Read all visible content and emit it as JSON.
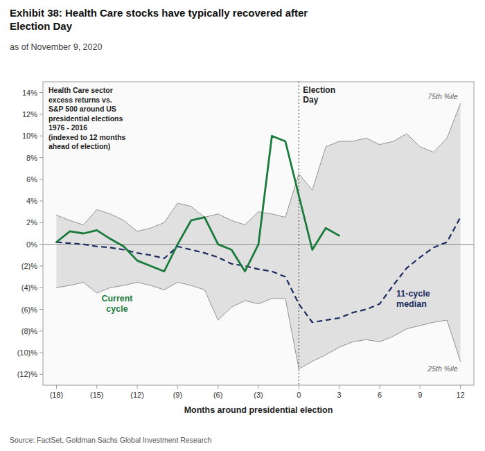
{
  "chart_data": {
    "type": "line",
    "title": "Exhibit 38: Health Care stocks have typically recovered after\nElection Day",
    "subtitle": "as of November 9, 2020",
    "source": "Source: FactSet, Goldman Sachs Global Investment Research",
    "xlabel": "Months around presidential election",
    "annotations": [
      "Health Care sector\nexcess returns vs.\nS&P 500 around US\npresidential elections\n1976 - 2016\n(indexed to 12 months\nahead of election)",
      "Election\nDay"
    ],
    "grid": false,
    "x": [
      -18,
      -17,
      -16,
      -15,
      -14,
      -13,
      -12,
      -11,
      -10,
      -9,
      -8,
      -7,
      -6,
      -5,
      -4,
      -3,
      -2,
      -1,
      0,
      1,
      2,
      3,
      4,
      5,
      6,
      7,
      8,
      9,
      10,
      11,
      12
    ],
    "xlim": [
      -19,
      13
    ],
    "xticks": [
      {
        "value": -18,
        "label": "(18)"
      },
      {
        "value": -15,
        "label": "(15)"
      },
      {
        "value": -12,
        "label": "(12)"
      },
      {
        "value": -9,
        "label": "(9)"
      },
      {
        "value": -6,
        "label": "(6)"
      },
      {
        "value": -3,
        "label": "(3)"
      },
      0,
      3,
      6,
      9,
      12
    ],
    "ylim": [
      -13,
      15
    ],
    "yticks": [
      {
        "value": -12,
        "label": "(12)%"
      },
      {
        "value": -10,
        "label": "(10)%"
      },
      {
        "value": -8,
        "label": "(8)%"
      },
      {
        "value": -6,
        "label": "(6)%"
      },
      {
        "value": -4,
        "label": "(4)%"
      },
      {
        "value": -2,
        "label": "(2)%"
      },
      {
        "value": 0,
        "label": "0%"
      },
      {
        "value": 2,
        "label": "2%"
      },
      {
        "value": 4,
        "label": "4%"
      },
      {
        "value": 6,
        "label": "6%"
      },
      {
        "value": 8,
        "label": "8%"
      },
      {
        "value": 10,
        "label": "10%"
      },
      {
        "value": 12,
        "label": "12%"
      },
      {
        "value": 14,
        "label": "14%"
      }
    ],
    "series": [
      {
        "name": "75th %ile",
        "color": "#888888",
        "line_style": "solid",
        "values": [
          2.7,
          2.2,
          1.8,
          3.2,
          2.8,
          2.2,
          1.2,
          1.5,
          2.0,
          3.8,
          3.5,
          2.5,
          2.8,
          2.2,
          1.8,
          3.0,
          2.8,
          2.5,
          6.5,
          5.0,
          9.0,
          9.5,
          9.5,
          9.8,
          9.2,
          9.5,
          10.2,
          9.0,
          8.5,
          9.8,
          13.0
        ]
      },
      {
        "name": "25th %ile",
        "color": "#888888",
        "line_style": "solid",
        "values": [
          -4.0,
          -3.8,
          -3.5,
          -4.5,
          -4.0,
          -3.8,
          -3.5,
          -3.8,
          -4.2,
          -3.5,
          -3.8,
          -4.2,
          -7.0,
          -5.8,
          -5.2,
          -5.5,
          -5.0,
          -5.0,
          -11.5,
          -10.8,
          -10.2,
          -9.5,
          -9.0,
          -8.8,
          -9.0,
          -8.5,
          -7.8,
          -7.5,
          -7.2,
          -7.0,
          -10.8
        ]
      },
      {
        "name": "11-cycle\nmedian",
        "color": "#1a2a5e",
        "line_style": "dashed",
        "values": [
          0.2,
          0.1,
          0.0,
          -0.2,
          -0.3,
          -0.5,
          -0.8,
          -1.0,
          -1.3,
          -0.2,
          -0.5,
          -0.8,
          -1.2,
          -1.8,
          -2.0,
          -2.3,
          -2.5,
          -3.0,
          -5.5,
          -7.2,
          -7.0,
          -6.8,
          -6.3,
          -6.0,
          -5.5,
          -3.8,
          -2.2,
          -1.2,
          -0.3,
          0.2,
          2.5
        ]
      },
      {
        "name": "Current\ncycle",
        "color": "#1a7a3c",
        "line_style": "solid",
        "values": [
          0.2,
          1.2,
          1.0,
          1.3,
          0.5,
          -0.2,
          -1.5,
          -2.0,
          -2.5,
          0.0,
          2.2,
          2.5,
          0.0,
          -0.5,
          -2.5,
          0.0,
          10.0,
          9.5,
          4.5,
          -0.5,
          1.5,
          0.8,
          null,
          null,
          null,
          null,
          null,
          null,
          null,
          null,
          null
        ]
      }
    ]
  }
}
